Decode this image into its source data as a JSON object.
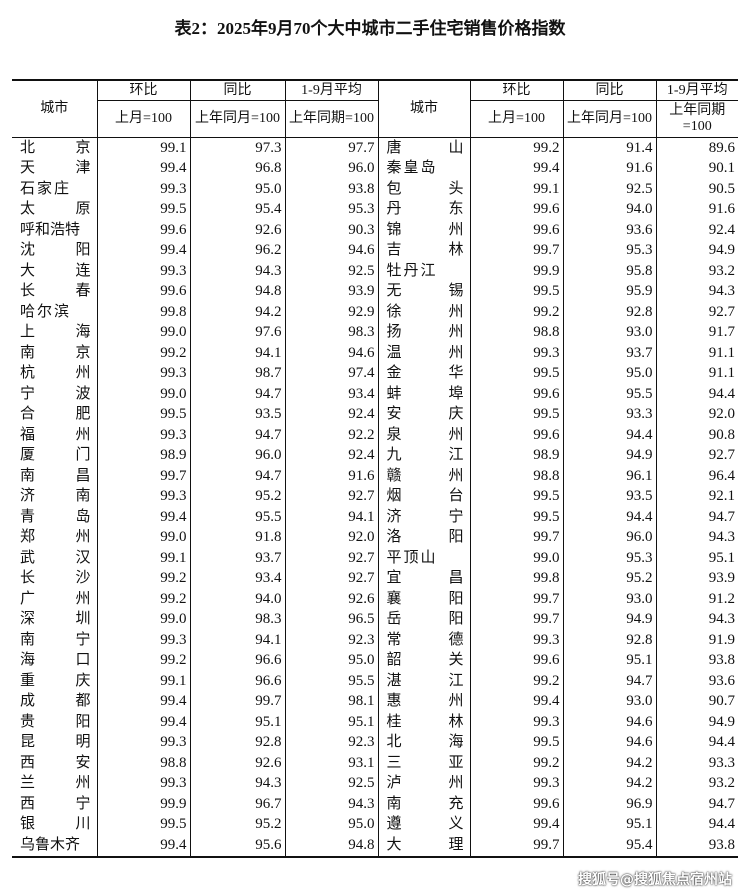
{
  "title": "表2：2025年9月70个大中城市二手住宅销售价格指数",
  "header": {
    "city": "城市",
    "mom": "环比",
    "yoy": "同比",
    "avg": "1-9月平均",
    "mom_base": "上月=100",
    "yoy_base": "上年同月=100",
    "avg_base": "上年同期=100"
  },
  "rows_left": [
    [
      "北京",
      "99.1",
      "97.3",
      "97.7"
    ],
    [
      "天津",
      "99.4",
      "96.8",
      "96.0"
    ],
    [
      "石家庄",
      "99.3",
      "95.0",
      "93.8"
    ],
    [
      "太原",
      "99.5",
      "95.4",
      "95.3"
    ],
    [
      "呼和浩特",
      "99.6",
      "92.6",
      "90.3"
    ],
    [
      "沈阳",
      "99.4",
      "96.2",
      "94.6"
    ],
    [
      "大连",
      "99.3",
      "94.3",
      "92.5"
    ],
    [
      "长春",
      "99.6",
      "94.8",
      "93.9"
    ],
    [
      "哈尔滨",
      "99.8",
      "94.2",
      "92.9"
    ],
    [
      "上海",
      "99.0",
      "97.6",
      "98.3"
    ],
    [
      "南京",
      "99.2",
      "94.1",
      "94.6"
    ],
    [
      "杭州",
      "99.3",
      "98.7",
      "97.4"
    ],
    [
      "宁波",
      "99.0",
      "94.7",
      "93.4"
    ],
    [
      "合肥",
      "99.5",
      "93.5",
      "92.4"
    ],
    [
      "福州",
      "99.3",
      "94.7",
      "92.2"
    ],
    [
      "厦门",
      "98.9",
      "96.0",
      "92.4"
    ],
    [
      "南昌",
      "99.7",
      "94.7",
      "91.6"
    ],
    [
      "济南",
      "99.3",
      "95.2",
      "92.7"
    ],
    [
      "青岛",
      "99.4",
      "95.5",
      "94.1"
    ],
    [
      "郑州",
      "99.0",
      "91.8",
      "92.0"
    ],
    [
      "武汉",
      "99.1",
      "93.7",
      "92.7"
    ],
    [
      "长沙",
      "99.2",
      "93.4",
      "92.7"
    ],
    [
      "广州",
      "99.2",
      "94.0",
      "92.6"
    ],
    [
      "深圳",
      "99.0",
      "98.3",
      "96.5"
    ],
    [
      "南宁",
      "99.3",
      "94.1",
      "92.3"
    ],
    [
      "海口",
      "99.2",
      "96.6",
      "95.0"
    ],
    [
      "重庆",
      "99.1",
      "96.6",
      "95.5"
    ],
    [
      "成都",
      "99.4",
      "99.7",
      "98.1"
    ],
    [
      "贵阳",
      "99.4",
      "95.1",
      "95.1"
    ],
    [
      "昆明",
      "99.3",
      "92.8",
      "92.3"
    ],
    [
      "西安",
      "98.8",
      "92.6",
      "93.1"
    ],
    [
      "兰州",
      "99.3",
      "94.3",
      "92.5"
    ],
    [
      "西宁",
      "99.9",
      "96.7",
      "94.3"
    ],
    [
      "银川",
      "99.5",
      "95.2",
      "95.0"
    ],
    [
      "乌鲁木齐",
      "99.4",
      "95.6",
      "94.8"
    ]
  ],
  "rows_right": [
    [
      "唐山",
      "99.2",
      "91.4",
      "89.6"
    ],
    [
      "秦皇岛",
      "99.4",
      "91.6",
      "90.1"
    ],
    [
      "包头",
      "99.1",
      "92.5",
      "90.5"
    ],
    [
      "丹东",
      "99.6",
      "94.0",
      "91.6"
    ],
    [
      "锦州",
      "99.6",
      "93.6",
      "92.4"
    ],
    [
      "吉林",
      "99.7",
      "95.3",
      "94.9"
    ],
    [
      "牡丹江",
      "99.9",
      "95.8",
      "93.2"
    ],
    [
      "无锡",
      "99.5",
      "95.9",
      "94.3"
    ],
    [
      "徐州",
      "99.2",
      "92.8",
      "92.7"
    ],
    [
      "扬州",
      "98.8",
      "93.0",
      "91.7"
    ],
    [
      "温州",
      "99.3",
      "93.7",
      "91.1"
    ],
    [
      "金华",
      "99.5",
      "95.0",
      "91.1"
    ],
    [
      "蚌埠",
      "99.6",
      "95.5",
      "94.4"
    ],
    [
      "安庆",
      "99.5",
      "93.3",
      "92.0"
    ],
    [
      "泉州",
      "99.6",
      "94.4",
      "90.8"
    ],
    [
      "九江",
      "98.9",
      "94.9",
      "92.7"
    ],
    [
      "赣州",
      "98.8",
      "96.1",
      "96.4"
    ],
    [
      "烟台",
      "99.5",
      "93.5",
      "92.1"
    ],
    [
      "济宁",
      "99.5",
      "94.4",
      "94.7"
    ],
    [
      "洛阳",
      "99.7",
      "96.0",
      "94.3"
    ],
    [
      "平顶山",
      "99.0",
      "95.3",
      "95.1"
    ],
    [
      "宜昌",
      "99.8",
      "95.2",
      "93.9"
    ],
    [
      "襄阳",
      "99.7",
      "93.0",
      "91.2"
    ],
    [
      "岳阳",
      "99.7",
      "94.9",
      "94.3"
    ],
    [
      "常德",
      "99.3",
      "92.8",
      "91.9"
    ],
    [
      "韶关",
      "99.6",
      "95.1",
      "93.8"
    ],
    [
      "湛江",
      "99.2",
      "94.7",
      "93.6"
    ],
    [
      "惠州",
      "99.4",
      "93.0",
      "90.7"
    ],
    [
      "桂林",
      "99.3",
      "94.6",
      "94.9"
    ],
    [
      "北海",
      "99.5",
      "94.6",
      "94.4"
    ],
    [
      "三亚",
      "99.2",
      "94.2",
      "93.3"
    ],
    [
      "泸州",
      "99.3",
      "94.2",
      "93.2"
    ],
    [
      "南充",
      "99.6",
      "96.9",
      "94.7"
    ],
    [
      "遵义",
      "99.4",
      "95.1",
      "94.4"
    ],
    [
      "大理",
      "99.7",
      "95.4",
      "93.8"
    ]
  ],
  "watermark": "搜狐号@搜狐焦点宿州站"
}
